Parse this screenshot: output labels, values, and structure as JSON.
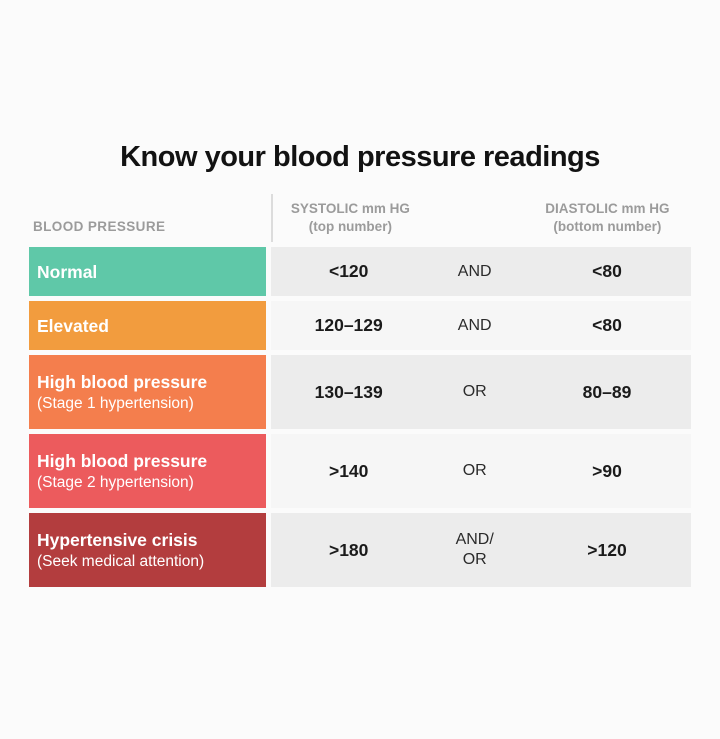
{
  "chart_data": {
    "type": "table",
    "title": "Know your blood pressure readings",
    "column_headers": {
      "category": "BLOOD PRESSURE",
      "systolic": "SYSTOLIC mm HG\n(top number)",
      "diastolic": "DIASTOLIC mm HG\n(bottom number)"
    },
    "rows": [
      {
        "category": "Normal",
        "note": "",
        "systolic": "<120",
        "logic": "AND",
        "diastolic": "<80",
        "category_color": "#5fc8a8",
        "cell_bg": "#ececec"
      },
      {
        "category": "Elevated",
        "note": "",
        "systolic": "120–129",
        "logic": "AND",
        "diastolic": "<80",
        "category_color": "#f29c3e",
        "cell_bg": "#f6f6f6"
      },
      {
        "category": "High blood pressure",
        "note": "(Stage 1 hypertension)",
        "systolic": "130–139",
        "logic": "OR",
        "diastolic": "80–89",
        "category_color": "#f47e4d",
        "cell_bg": "#ececec"
      },
      {
        "category": "High blood pressure",
        "note": "(Stage 2 hypertension)",
        "systolic": ">140",
        "logic": "OR",
        "diastolic": ">90",
        "category_color": "#ec5b5d",
        "cell_bg": "#f6f6f6"
      },
      {
        "category": "Hypertensive crisis",
        "note": "(Seek medical attention)",
        "systolic": ">180",
        "logic": "AND/\nOR",
        "diastolic": ">120",
        "category_color": "#b33d3e",
        "cell_bg": "#ececec"
      }
    ],
    "colors": {
      "page_background": "#fbfbfb",
      "header_text": "#9b9b9b",
      "header_divider": "#dcdcdc",
      "value_text": "#1b1b1b",
      "row_bg_odd": "#ececec",
      "row_bg_even": "#f6f6f6"
    }
  }
}
